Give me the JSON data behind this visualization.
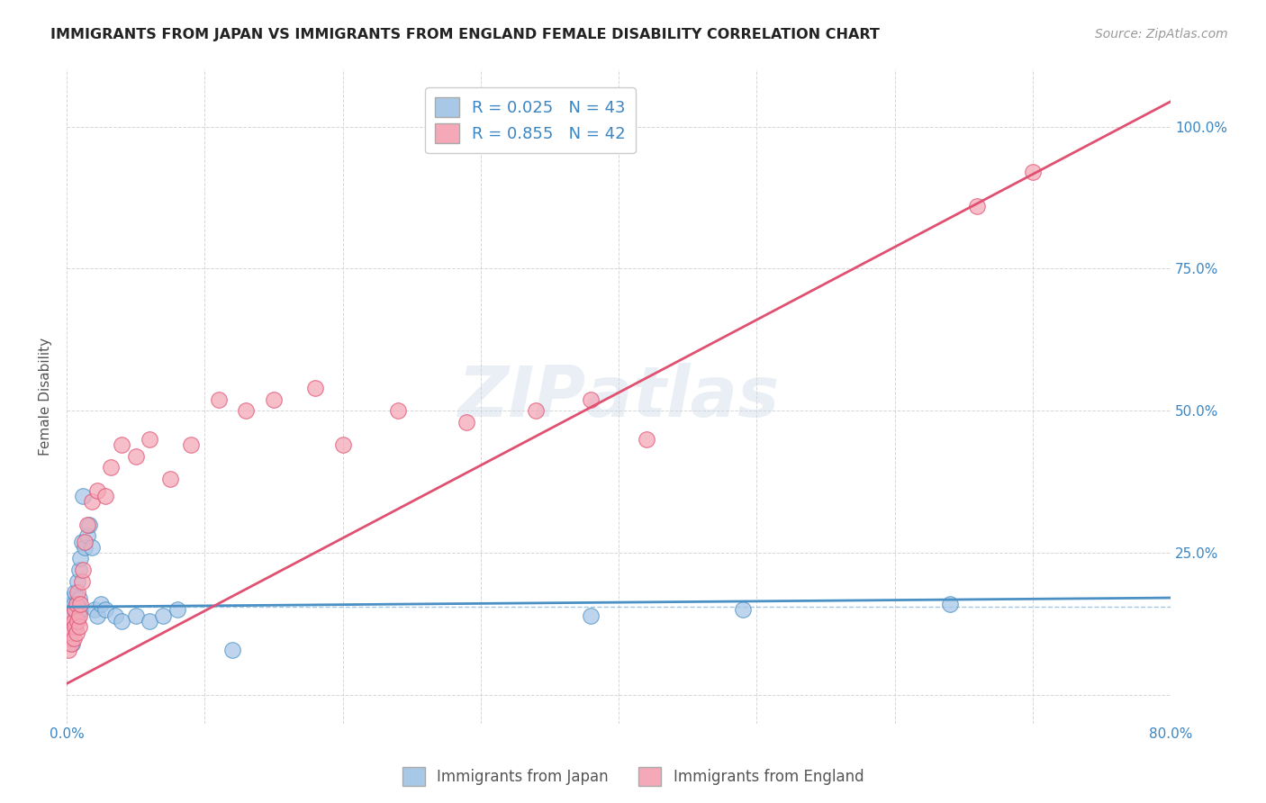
{
  "title": "IMMIGRANTS FROM JAPAN VS IMMIGRANTS FROM ENGLAND FEMALE DISABILITY CORRELATION CHART",
  "source": "Source: ZipAtlas.com",
  "ylabel": "Female Disability",
  "xlim": [
    0.0,
    0.8
  ],
  "ylim": [
    -0.05,
    1.1
  ],
  "x_ticks": [
    0.0,
    0.1,
    0.2,
    0.3,
    0.4,
    0.5,
    0.6,
    0.7,
    0.8
  ],
  "x_tick_labels": [
    "0.0%",
    "",
    "",
    "",
    "",
    "",
    "",
    "",
    "80.0%"
  ],
  "y_ticks": [
    0.0,
    0.25,
    0.5,
    0.75,
    1.0
  ],
  "y_tick_labels": [
    "",
    "25.0%",
    "50.0%",
    "75.0%",
    "100.0%"
  ],
  "japan_R": 0.025,
  "japan_N": 43,
  "england_R": 0.855,
  "england_N": 42,
  "japan_color": "#A8C8E8",
  "england_color": "#F4A8B8",
  "japan_line_color": "#4A90C4",
  "england_line_color": "#E05070",
  "legend_label_japan": "Immigrants from Japan",
  "legend_label_england": "Immigrants from England",
  "japan_x": [
    0.001,
    0.001,
    0.002,
    0.002,
    0.003,
    0.003,
    0.003,
    0.004,
    0.004,
    0.004,
    0.005,
    0.005,
    0.005,
    0.006,
    0.006,
    0.007,
    0.007,
    0.008,
    0.008,
    0.009,
    0.009,
    0.01,
    0.01,
    0.011,
    0.012,
    0.013,
    0.015,
    0.016,
    0.018,
    0.02,
    0.022,
    0.025,
    0.028,
    0.035,
    0.04,
    0.05,
    0.06,
    0.07,
    0.08,
    0.12,
    0.38,
    0.49,
    0.64
  ],
  "japan_y": [
    0.1,
    0.13,
    0.15,
    0.12,
    0.14,
    0.11,
    0.16,
    0.13,
    0.09,
    0.17,
    0.14,
    0.16,
    0.12,
    0.15,
    0.18,
    0.13,
    0.16,
    0.2,
    0.14,
    0.22,
    0.17,
    0.15,
    0.24,
    0.27,
    0.35,
    0.26,
    0.28,
    0.3,
    0.26,
    0.15,
    0.14,
    0.16,
    0.15,
    0.14,
    0.13,
    0.14,
    0.13,
    0.14,
    0.15,
    0.08,
    0.14,
    0.15,
    0.16
  ],
  "england_x": [
    0.001,
    0.002,
    0.003,
    0.003,
    0.004,
    0.004,
    0.005,
    0.005,
    0.006,
    0.006,
    0.007,
    0.007,
    0.008,
    0.008,
    0.009,
    0.009,
    0.01,
    0.011,
    0.012,
    0.013,
    0.015,
    0.018,
    0.022,
    0.028,
    0.032,
    0.04,
    0.05,
    0.06,
    0.075,
    0.09,
    0.11,
    0.13,
    0.15,
    0.18,
    0.2,
    0.24,
    0.29,
    0.34,
    0.38,
    0.42,
    0.66,
    0.7
  ],
  "england_y": [
    0.08,
    0.1,
    0.09,
    0.12,
    0.11,
    0.14,
    0.1,
    0.13,
    0.12,
    0.15,
    0.11,
    0.16,
    0.13,
    0.18,
    0.12,
    0.14,
    0.16,
    0.2,
    0.22,
    0.27,
    0.3,
    0.34,
    0.36,
    0.35,
    0.4,
    0.44,
    0.42,
    0.45,
    0.38,
    0.44,
    0.52,
    0.5,
    0.52,
    0.54,
    0.44,
    0.5,
    0.48,
    0.5,
    0.52,
    0.45,
    0.86,
    0.92
  ],
  "japan_line_slope": 0.02,
  "japan_line_intercept": 0.155,
  "england_line_slope": 1.28,
  "england_line_intercept": 0.02
}
